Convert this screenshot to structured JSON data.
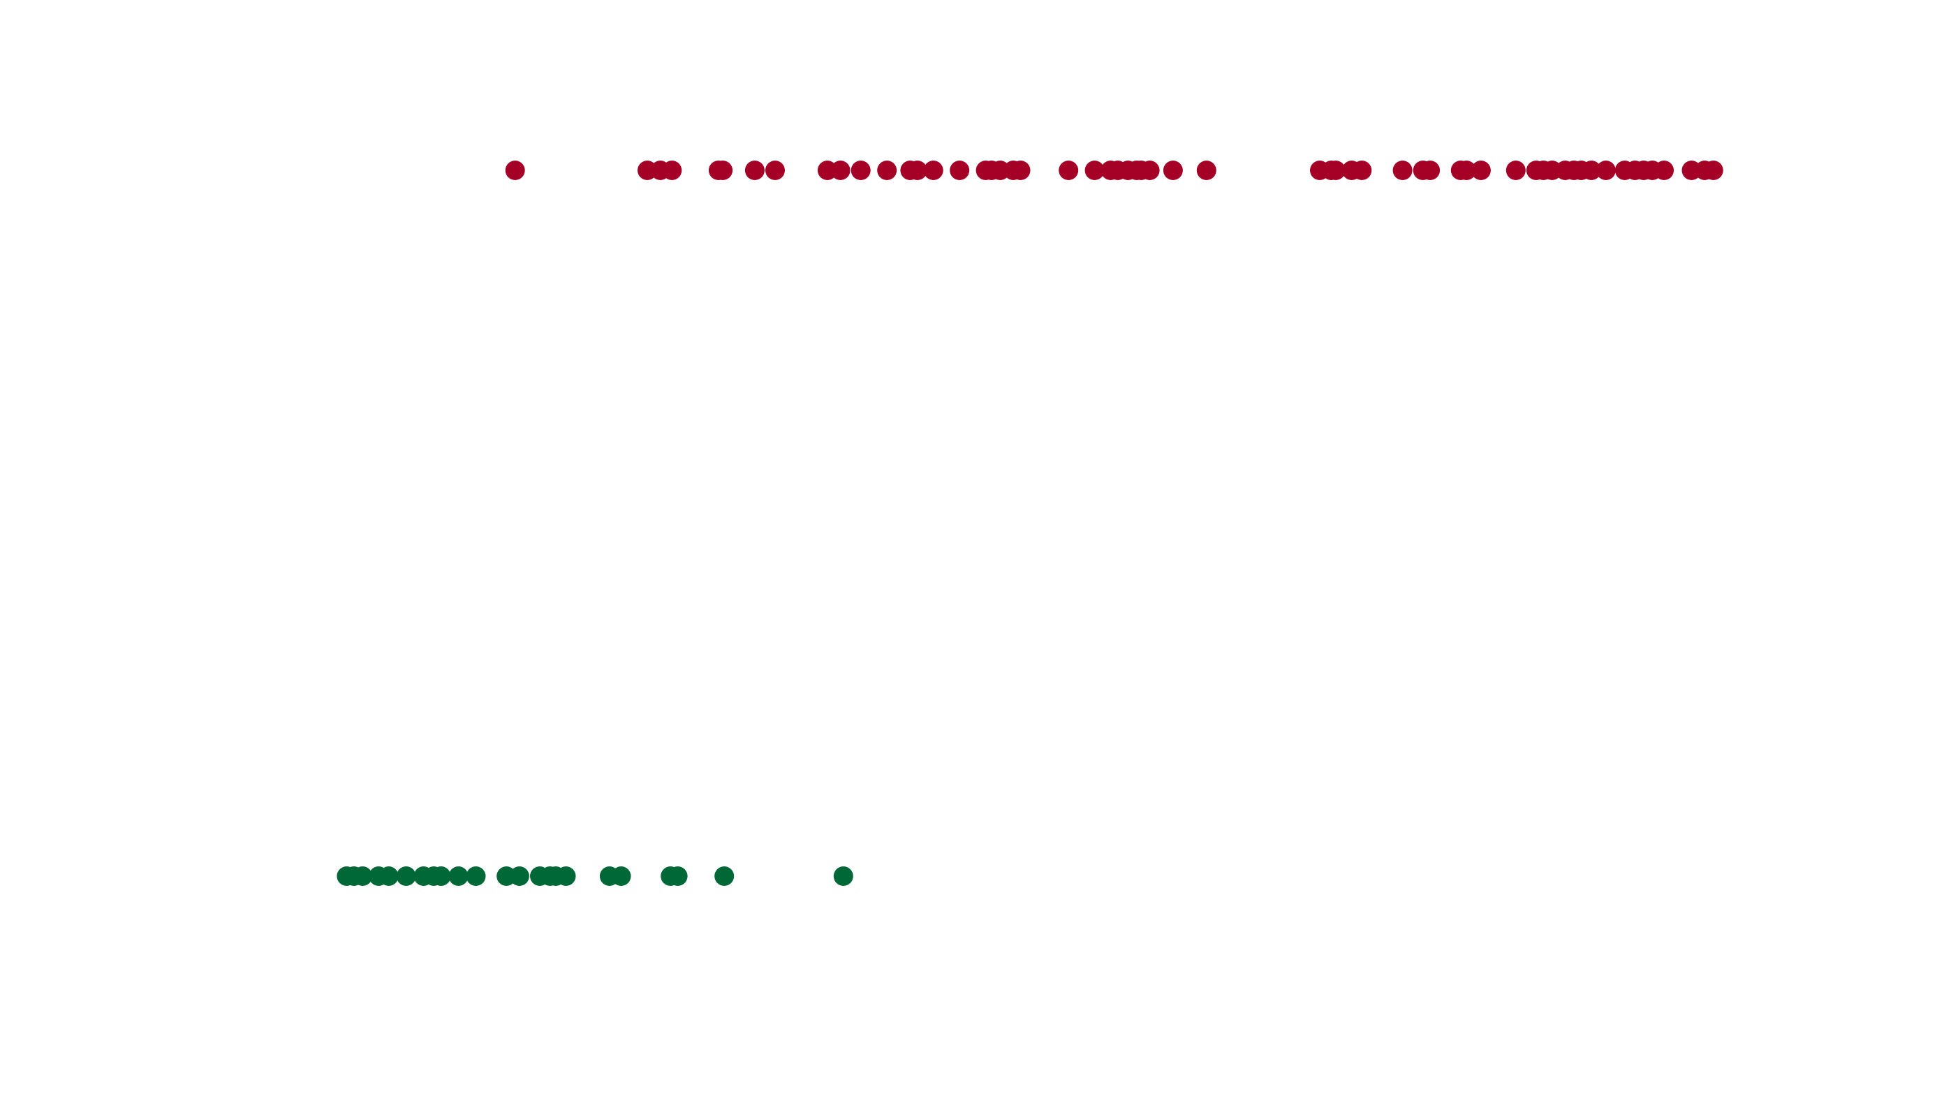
{
  "chart_data": {
    "type": "scatter",
    "title": "",
    "xlabel": "",
    "ylabel": "",
    "xlim": [
      0,
      100
    ],
    "ylim": [
      -0.2,
      1.2
    ],
    "grid": false,
    "axes_visible": false,
    "legend": "none",
    "series": [
      {
        "y": 1,
        "color": "#a50026",
        "x": [
          12.1,
          21.2,
          22.1,
          22.9,
          26.1,
          26.4,
          28.6,
          30.0,
          33.6,
          34.5,
          35.9,
          37.7,
          39.3,
          39.8,
          40.9,
          42.7,
          44.5,
          44.9,
          45.5,
          46.4,
          46.9,
          50.2,
          52.0,
          53.1,
          53.6,
          54.3,
          54.9,
          55.2,
          55.8,
          57.4,
          59.7,
          67.5,
          68.3,
          68.6,
          69.7,
          70.4,
          73.2,
          74.6,
          75.1,
          77.2,
          77.6,
          78.6,
          81.0,
          82.4,
          82.9,
          83.5,
          84.4,
          85.0,
          85.5,
          86.2,
          87.2,
          88.5,
          89.2,
          89.8,
          90.4,
          91.2,
          93.1,
          94.0,
          94.6
        ]
      },
      {
        "y": 0,
        "color": "#006837",
        "x": [
          0.5,
          1.0,
          1.6,
          2.7,
          3.4,
          4.6,
          5.8,
          6.5,
          7.0,
          8.2,
          9.4,
          11.5,
          12.4,
          13.8,
          14.5,
          14.9,
          15.6,
          18.6,
          19.4,
          22.8,
          23.3,
          26.5,
          34.7
        ]
      }
    ]
  }
}
